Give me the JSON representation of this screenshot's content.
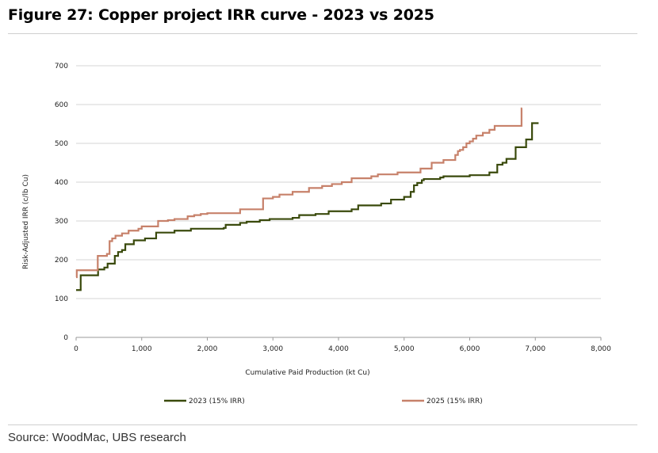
{
  "figure": {
    "title": "Figure 27: Copper project IRR curve - 2023 vs 2025",
    "source": "Source: WoodMac, UBS research"
  },
  "chart_data": {
    "type": "line",
    "title": "Figure 27: Copper project IRR curve - 2023 vs 2025",
    "xlabel": "Cumulative Paid Production (kt Cu)",
    "ylabel": "Risk-Adjusted IRR (c/lb Cu)",
    "xlim": [
      0,
      8000
    ],
    "ylim": [
      0,
      700
    ],
    "xticks": [
      0,
      1000,
      2000,
      3000,
      4000,
      5000,
      6000,
      7000,
      8000
    ],
    "xtick_labels": [
      "0",
      "1,000",
      "2,000",
      "3,000",
      "4,000",
      "5,000",
      "6,000",
      "7,000",
      "8,000"
    ],
    "yticks": [
      0,
      100,
      200,
      300,
      400,
      500,
      600,
      700
    ],
    "ytick_labels": [
      "0",
      "100",
      "200",
      "300",
      "400",
      "500",
      "600",
      "700"
    ],
    "grid": true,
    "legend_position": "bottom",
    "series": [
      {
        "name": "2023 (15% IRR)",
        "color": "#3a4a0c",
        "step": true,
        "points": [
          [
            0,
            122
          ],
          [
            70,
            160
          ],
          [
            330,
            160
          ],
          [
            335,
            175
          ],
          [
            430,
            180
          ],
          [
            480,
            190
          ],
          [
            590,
            210
          ],
          [
            640,
            220
          ],
          [
            700,
            225
          ],
          [
            750,
            240
          ],
          [
            880,
            250
          ],
          [
            1050,
            255
          ],
          [
            1220,
            270
          ],
          [
            1500,
            275
          ],
          [
            1750,
            280
          ],
          [
            2250,
            282
          ],
          [
            2280,
            290
          ],
          [
            2500,
            295
          ],
          [
            2600,
            298
          ],
          [
            2800,
            302
          ],
          [
            2950,
            305
          ],
          [
            3300,
            308
          ],
          [
            3400,
            315
          ],
          [
            3650,
            318
          ],
          [
            3850,
            325
          ],
          [
            4200,
            330
          ],
          [
            4300,
            340
          ],
          [
            4650,
            345
          ],
          [
            4800,
            355
          ],
          [
            5000,
            362
          ],
          [
            5100,
            375
          ],
          [
            5150,
            392
          ],
          [
            5200,
            398
          ],
          [
            5270,
            405
          ],
          [
            5300,
            408
          ],
          [
            5550,
            412
          ],
          [
            5600,
            415
          ],
          [
            6000,
            418
          ],
          [
            6300,
            425
          ],
          [
            6420,
            445
          ],
          [
            6500,
            450
          ],
          [
            6560,
            460
          ],
          [
            6700,
            490
          ],
          [
            6860,
            510
          ],
          [
            6950,
            552
          ],
          [
            7050,
            552
          ]
        ]
      },
      {
        "name": "2025 (15% IRR)",
        "color": "#c7816a",
        "step": true,
        "points": [
          [
            0,
            155
          ],
          [
            10,
            173
          ],
          [
            320,
            173
          ],
          [
            330,
            210
          ],
          [
            470,
            215
          ],
          [
            510,
            248
          ],
          [
            550,
            255
          ],
          [
            600,
            262
          ],
          [
            700,
            268
          ],
          [
            800,
            275
          ],
          [
            950,
            280
          ],
          [
            1000,
            286
          ],
          [
            1250,
            300
          ],
          [
            1400,
            302
          ],
          [
            1500,
            305
          ],
          [
            1700,
            312
          ],
          [
            1800,
            315
          ],
          [
            1900,
            318
          ],
          [
            2000,
            320
          ],
          [
            2500,
            330
          ],
          [
            2850,
            358
          ],
          [
            3000,
            362
          ],
          [
            3100,
            368
          ],
          [
            3300,
            375
          ],
          [
            3550,
            385
          ],
          [
            3750,
            390
          ],
          [
            3900,
            395
          ],
          [
            4050,
            400
          ],
          [
            4200,
            410
          ],
          [
            4500,
            415
          ],
          [
            4600,
            420
          ],
          [
            4900,
            425
          ],
          [
            5250,
            435
          ],
          [
            5420,
            450
          ],
          [
            5600,
            457
          ],
          [
            5780,
            470
          ],
          [
            5820,
            480
          ],
          [
            5850,
            483
          ],
          [
            5900,
            490
          ],
          [
            5950,
            500
          ],
          [
            6000,
            505
          ],
          [
            6050,
            512
          ],
          [
            6100,
            520
          ],
          [
            6200,
            527
          ],
          [
            6300,
            535
          ],
          [
            6380,
            545
          ],
          [
            6750,
            545
          ],
          [
            6790,
            590
          ],
          [
            6800,
            590
          ]
        ]
      }
    ]
  }
}
